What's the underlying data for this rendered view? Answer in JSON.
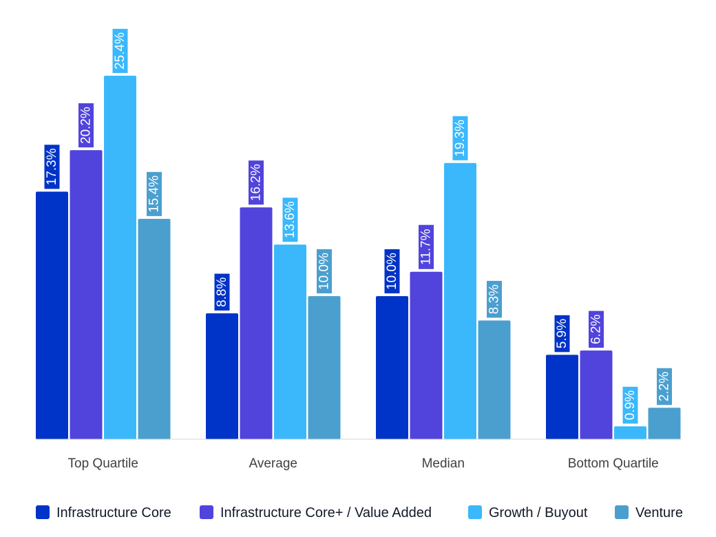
{
  "chart_data": {
    "type": "bar",
    "categories": [
      "Top Quartile",
      "Average",
      "Median",
      "Bottom Quartile"
    ],
    "series": [
      {
        "name": "Infrastructure Core",
        "color": "#0033c7",
        "values": [
          17.3,
          8.8,
          10.0,
          5.9
        ],
        "labels": [
          "17.3%",
          "8.8%",
          "10.0%",
          "5.9%"
        ]
      },
      {
        "name": "Infrastructure Core+ / Value Added",
        "color": "#5044dc",
        "values": [
          20.2,
          16.2,
          11.7,
          6.2
        ],
        "labels": [
          "20.2%",
          "16.2%",
          "11.7%",
          "6.2%"
        ]
      },
      {
        "name": "Growth / Buyout",
        "color": "#3bb8fb",
        "values": [
          25.4,
          13.6,
          19.3,
          0.9
        ],
        "labels": [
          "25.4%",
          "13.6%",
          "19.3%",
          "0.9%"
        ]
      },
      {
        "name": "Venture",
        "color": "#4b9fcf",
        "values": [
          15.4,
          10.0,
          8.3,
          2.2
        ],
        "labels": [
          "15.4%",
          "10.0%",
          "8.3%",
          "2.2%"
        ]
      }
    ],
    "ylim": [
      0,
      25.4
    ],
    "grid": false,
    "legend": "bottom"
  }
}
